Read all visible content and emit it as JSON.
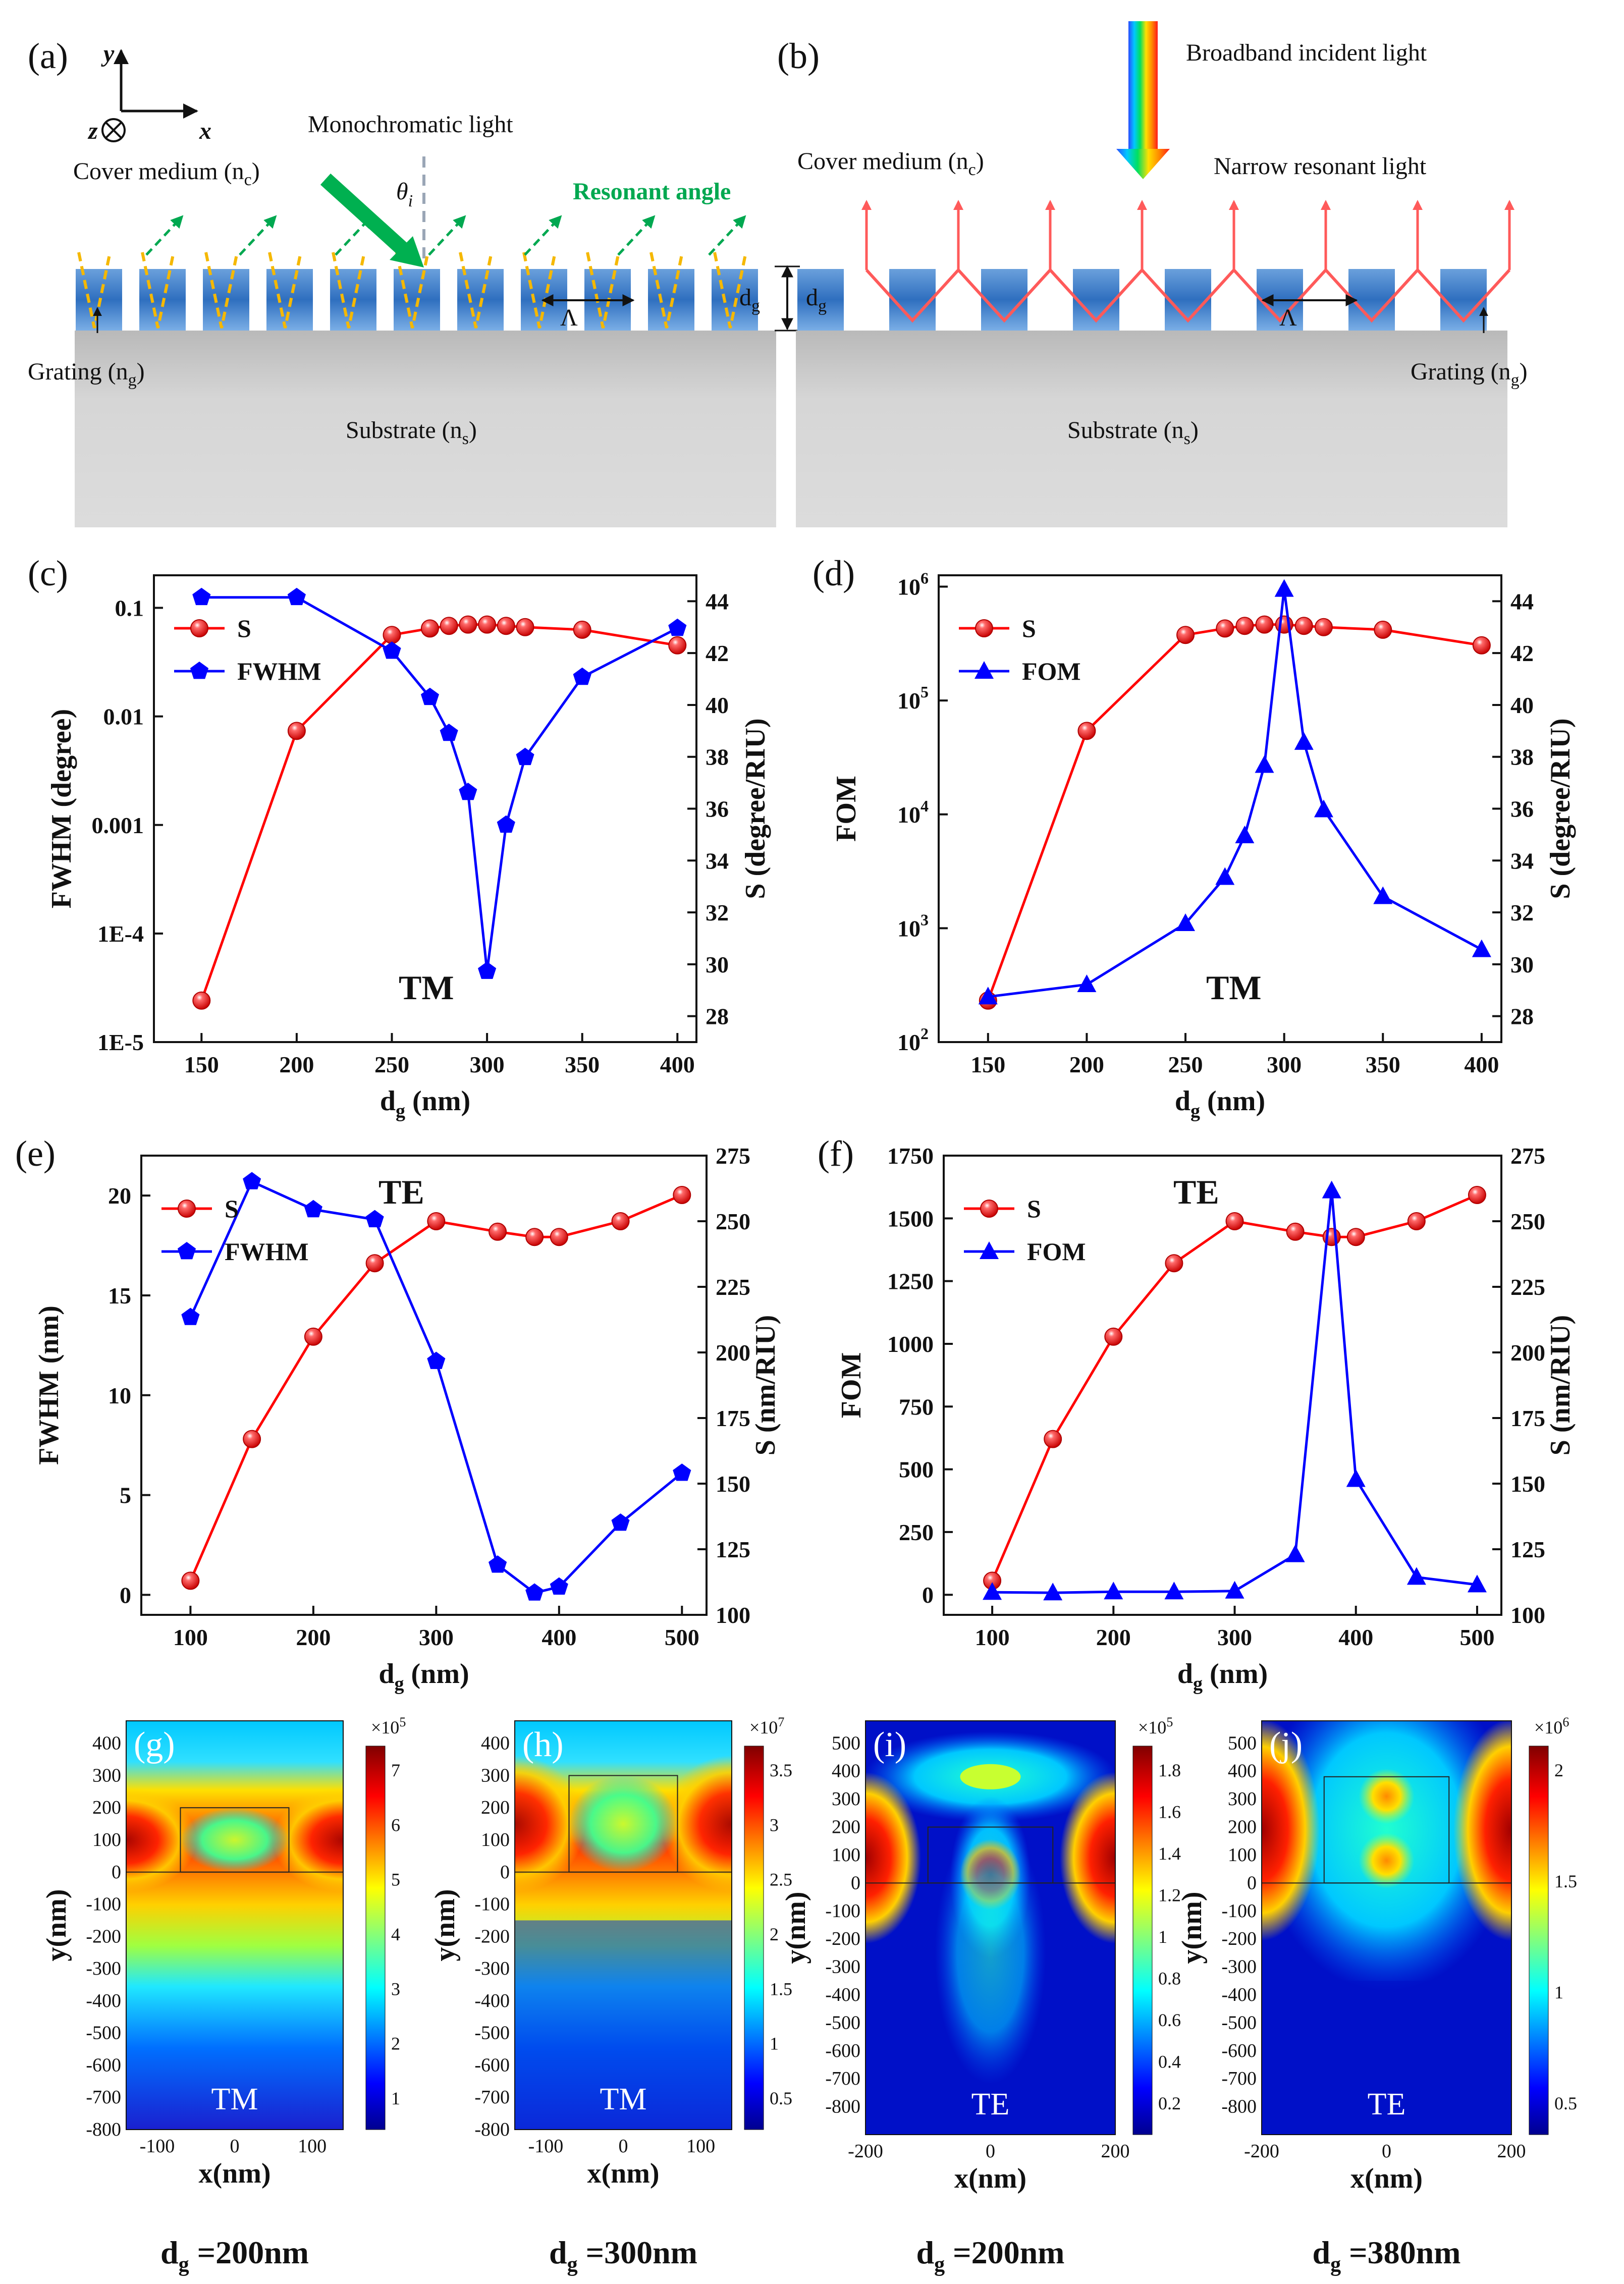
{
  "schematic": {
    "a": {
      "label": "(a)",
      "axis_y": "y",
      "axis_z": "z",
      "axis_x": "x",
      "light": "Monochromatic light",
      "angle_symbol": "θ",
      "angle_sub": "i",
      "resonant": "Resonant angle",
      "cover": "Cover medium (n",
      "cover_sub": "c",
      "grating": "Grating (n",
      "grating_sub": "g",
      "substrate": "Substrate (n",
      "substrate_sub": "s",
      "period": "Λ",
      "dg": "d",
      "dg_sub": "g"
    },
    "b": {
      "label": "(b)",
      "broadband": "Broadband incident light",
      "narrow": "Narrow resonant light",
      "cover": "Cover medium (n",
      "cover_sub": "c",
      "grating": "Grating (n",
      "grating_sub": "g",
      "substrate": "Substrate (n",
      "substrate_sub": "s",
      "period": "Λ",
      "dg": "d",
      "dg_sub": "g"
    },
    "close_paren": ")"
  },
  "chart_data": [
    {
      "id": "c",
      "panel_label": "(c)",
      "type": "line",
      "mode": "TM",
      "xlabel": "d",
      "xlabel_sub": "g",
      "xlabel_unit": " (nm)",
      "ylabel_left": "FWHM (degree)",
      "ylabel_right": "S (degree/RIU)",
      "xlim": [
        125,
        410
      ],
      "ylim_left": [
        -5,
        -0.7
      ],
      "yscale_left": "log",
      "ylim_right": [
        27,
        45
      ],
      "xticks": [
        150,
        200,
        250,
        300,
        350,
        400
      ],
      "yticks_left": [
        {
          "v": -5,
          "t": "1E-5"
        },
        {
          "v": -4,
          "t": "1E-4"
        },
        {
          "v": -3,
          "t": "0.001"
        },
        {
          "v": -2,
          "t": "0.01"
        },
        {
          "v": -1,
          "t": "0.1"
        }
      ],
      "yticks_right": [
        28,
        30,
        32,
        34,
        36,
        38,
        40,
        42,
        44
      ],
      "legend": [
        "S",
        "FWHM"
      ],
      "series": [
        {
          "name": "S",
          "axis": "right",
          "color": "#ff0000",
          "marker": "sphere",
          "x": [
            150,
            200,
            250,
            270,
            280,
            290,
            300,
            310,
            320,
            350,
            400
          ],
          "y": [
            28.6,
            39.0,
            42.7,
            42.95,
            43.05,
            43.1,
            43.1,
            43.05,
            43.0,
            42.9,
            42.3
          ]
        },
        {
          "name": "FWHM",
          "axis": "left",
          "color": "#0000ff",
          "marker": "pentagon",
          "x": [
            150,
            200,
            250,
            270,
            280,
            290,
            300,
            310,
            320,
            350,
            400
          ],
          "y": [
            0.125,
            0.125,
            0.04,
            0.015,
            0.007,
            0.002,
            4.5e-05,
            0.001,
            0.0042,
            0.023,
            0.065
          ]
        }
      ]
    },
    {
      "id": "d",
      "panel_label": "(d)",
      "type": "line",
      "mode": "TM",
      "xlabel": "d",
      "xlabel_sub": "g",
      "xlabel_unit": " (nm)",
      "ylabel_left": "FOM",
      "ylabel_right": "S (degree/RIU)",
      "xlim": [
        125,
        410
      ],
      "ylim_left": [
        2,
        6.1
      ],
      "yscale_left": "log",
      "ylim_right": [
        27,
        45
      ],
      "xticks": [
        150,
        200,
        250,
        300,
        350,
        400
      ],
      "yticks_left": [
        {
          "v": 2,
          "t": "10",
          "e": "2"
        },
        {
          "v": 3,
          "t": "10",
          "e": "3"
        },
        {
          "v": 4,
          "t": "10",
          "e": "4"
        },
        {
          "v": 5,
          "t": "10",
          "e": "5"
        },
        {
          "v": 6,
          "t": "10",
          "e": "6"
        }
      ],
      "yticks_right": [
        28,
        30,
        32,
        34,
        36,
        38,
        40,
        42,
        44
      ],
      "legend": [
        "S",
        "FOM"
      ],
      "series": [
        {
          "name": "S",
          "axis": "right",
          "color": "#ff0000",
          "marker": "sphere",
          "x": [
            150,
            200,
            250,
            270,
            280,
            290,
            300,
            310,
            320,
            350,
            400
          ],
          "y": [
            28.6,
            39.0,
            42.7,
            42.95,
            43.05,
            43.1,
            43.1,
            43.05,
            43.0,
            42.9,
            42.3
          ]
        },
        {
          "name": "FOM",
          "axis": "left",
          "color": "#0000ff",
          "marker": "triangle",
          "x": [
            150,
            200,
            250,
            270,
            280,
            290,
            300,
            310,
            320,
            350,
            400
          ],
          "y": [
            250,
            320,
            1100,
            2800,
            6500,
            27000,
            950000,
            43000,
            11000,
            1900,
            650
          ]
        }
      ]
    },
    {
      "id": "e",
      "panel_label": "(e)",
      "type": "line",
      "mode": "TE",
      "xlabel": "d",
      "xlabel_sub": "g",
      "xlabel_unit": " (nm)",
      "ylabel_left": "FWHM (nm)",
      "ylabel_right": "S (nm/RIU)",
      "xlim": [
        60,
        520
      ],
      "ylim_left": [
        -1,
        22
      ],
      "yscale_left": "linear",
      "ylim_right": [
        100,
        275
      ],
      "xticks": [
        100,
        200,
        300,
        400,
        500
      ],
      "yticks_left": [
        {
          "v": 0,
          "t": "0"
        },
        {
          "v": 5,
          "t": "5"
        },
        {
          "v": 10,
          "t": "10"
        },
        {
          "v": 15,
          "t": "15"
        },
        {
          "v": 20,
          "t": "20"
        }
      ],
      "yticks_right": [
        100,
        125,
        150,
        175,
        200,
        225,
        250,
        275
      ],
      "legend": [
        "S",
        "FWHM"
      ],
      "series": [
        {
          "name": "S",
          "axis": "right",
          "color": "#ff0000",
          "marker": "sphere",
          "x": [
            100,
            150,
            200,
            250,
            300,
            350,
            380,
            400,
            450,
            500
          ],
          "y": [
            113,
            167,
            206,
            234,
            250,
            246,
            244,
            244,
            250,
            260
          ]
        },
        {
          "name": "FWHM",
          "axis": "left",
          "color": "#0000ff",
          "marker": "pentagon",
          "x": [
            100,
            150,
            200,
            250,
            300,
            350,
            380,
            400,
            450,
            500
          ],
          "y": [
            13.9,
            20.7,
            19.3,
            18.8,
            11.7,
            1.5,
            0.1,
            0.4,
            3.6,
            6.1
          ]
        }
      ]
    },
    {
      "id": "f",
      "panel_label": "(f)",
      "type": "line",
      "mode": "TE",
      "xlabel": "d",
      "xlabel_sub": "g",
      "xlabel_unit": " (nm)",
      "ylabel_left": "FOM",
      "ylabel_right": "S (nm/RIU)",
      "xlim": [
        60,
        520
      ],
      "ylim_left": [
        -80,
        1750
      ],
      "yscale_left": "linear",
      "ylim_right": [
        100,
        275
      ],
      "xticks": [
        100,
        200,
        300,
        400,
        500
      ],
      "yticks_left": [
        {
          "v": 0,
          "t": "0"
        },
        {
          "v": 250,
          "t": "250"
        },
        {
          "v": 500,
          "t": "500"
        },
        {
          "v": 750,
          "t": "750"
        },
        {
          "v": 1000,
          "t": "1000"
        },
        {
          "v": 1250,
          "t": "1250"
        },
        {
          "v": 1500,
          "t": "1500"
        },
        {
          "v": 1750,
          "t": "1750"
        }
      ],
      "yticks_right": [
        100,
        125,
        150,
        175,
        200,
        225,
        250,
        275
      ],
      "legend": [
        "S",
        "FOM"
      ],
      "series": [
        {
          "name": "S",
          "axis": "right",
          "color": "#ff0000",
          "marker": "sphere",
          "x": [
            100,
            150,
            200,
            250,
            300,
            350,
            380,
            400,
            450,
            500
          ],
          "y": [
            113,
            167,
            206,
            234,
            250,
            246,
            244,
            244,
            250,
            260
          ]
        },
        {
          "name": "FOM",
          "axis": "left",
          "color": "#0000ff",
          "marker": "triangle",
          "x": [
            100,
            150,
            200,
            250,
            300,
            350,
            380,
            400,
            450,
            500
          ],
          "y": [
            10,
            8,
            12,
            12,
            15,
            160,
            1610,
            460,
            70,
            40
          ]
        }
      ]
    }
  ],
  "field_maps": [
    {
      "id": "g",
      "label": "(g)",
      "mode": "TM",
      "caption": "d",
      "caption_sub": "g",
      "caption_val": " =200nm",
      "xlabel": "x(nm)",
      "ylabel": "y(nm)",
      "xrange": [
        -140,
        140
      ],
      "yrange": [
        -800,
        470
      ],
      "grating_height": 200,
      "grating_half_width": 70,
      "xticks": [
        "-100",
        "0",
        "100"
      ],
      "yticks": [
        "400",
        "300",
        "200",
        "100",
        "0",
        "-100",
        "-200",
        "-300",
        "-400",
        "-500",
        "-600",
        "-700",
        "-800"
      ],
      "cb_exp": "×10",
      "cb_exp_pow": "5",
      "cb_ticks": [
        "7",
        "6",
        "5",
        "4",
        "3",
        "2",
        "1"
      ]
    },
    {
      "id": "h",
      "label": "(h)",
      "mode": "TM",
      "caption": "d",
      "caption_sub": "g",
      "caption_val": " =300nm",
      "xlabel": "x(nm)",
      "ylabel": "y(nm)",
      "xrange": [
        -140,
        140
      ],
      "yrange": [
        -800,
        470
      ],
      "grating_height": 300,
      "grating_half_width": 70,
      "xticks": [
        "-100",
        "0",
        "100"
      ],
      "yticks": [
        "400",
        "300",
        "200",
        "100",
        "0",
        "-100",
        "-200",
        "-300",
        "-400",
        "-500",
        "-600",
        "-700",
        "-800"
      ],
      "cb_exp": "×10",
      "cb_exp_pow": "7",
      "cb_ticks": [
        "3.5",
        "3",
        "2.5",
        "2",
        "1.5",
        "1",
        "0.5"
      ]
    },
    {
      "id": "i",
      "label": "(i)",
      "mode": "TE",
      "caption": "d",
      "caption_sub": "g",
      "caption_val": " =200nm",
      "xlabel": "x(nm)",
      "ylabel": "y(nm)",
      "xrange": [
        -200,
        200
      ],
      "yrange": [
        -900,
        580
      ],
      "grating_height": 200,
      "grating_half_width": 100,
      "xticks": [
        "-200",
        "0",
        "200"
      ],
      "yticks": [
        "500",
        "400",
        "300",
        "200",
        "100",
        "0",
        "-100",
        "-200",
        "-300",
        "-400",
        "-500",
        "-600",
        "-700",
        "-800"
      ],
      "cb_exp": "×10",
      "cb_exp_pow": "5",
      "cb_ticks": [
        "1.8",
        "1.6",
        "1.4",
        "1.2",
        "1",
        "0.8",
        "0.6",
        "0.4",
        "0.2"
      ]
    },
    {
      "id": "j",
      "label": "(j)",
      "mode": "TE",
      "caption": "d",
      "caption_sub": "g",
      "caption_val": " =380nm",
      "xlabel": "x(nm)",
      "ylabel": "y(nm)",
      "xrange": [
        -200,
        200
      ],
      "yrange": [
        -900,
        580
      ],
      "grating_height": 380,
      "grating_half_width": 100,
      "xticks": [
        "-200",
        "0",
        "200"
      ],
      "yticks": [
        "500",
        "400",
        "300",
        "200",
        "100",
        "0",
        "-100",
        "-200",
        "-300",
        "-400",
        "-500",
        "-600",
        "-700",
        "-800"
      ],
      "cb_exp": "×10",
      "cb_exp_pow": "6",
      "cb_ticks": [
        "2",
        "1.5",
        "1",
        "0.5"
      ]
    }
  ],
  "colors": {
    "red": "#ff0000",
    "blue": "#0000ff",
    "grating": "#2f73c4",
    "substrate": "#d2d2d2",
    "green": "#00a850",
    "yellow": "#f5b800",
    "pink": "#ff5a5a"
  }
}
